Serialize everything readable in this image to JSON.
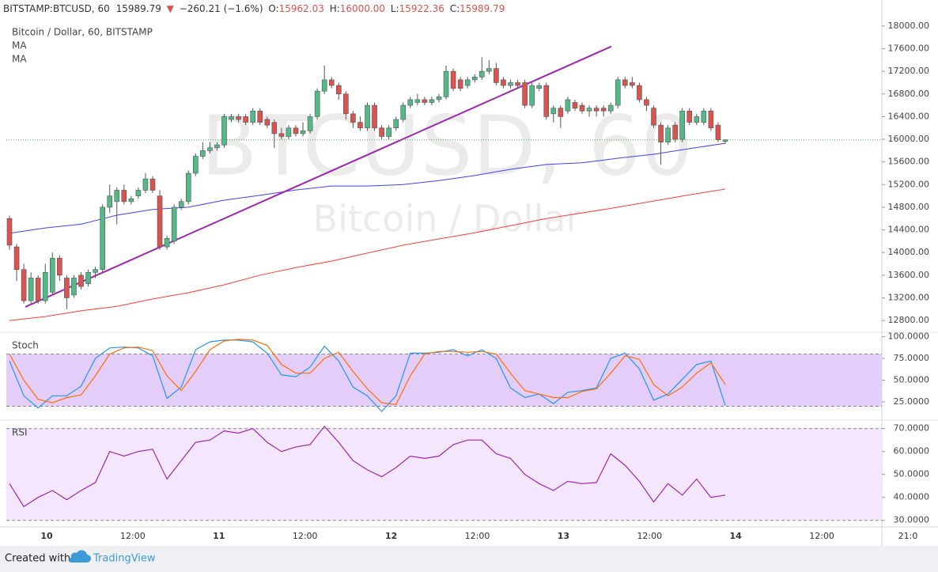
{
  "header": {
    "symbol": "BITSTAMP:BTCUSD, 60",
    "last": "15989.79",
    "arrow": "▼",
    "change": "−260.21 (−1.6%)",
    "o_label": "O:",
    "o": "15962.03",
    "h_label": "H:",
    "h": "16000.00",
    "l_label": "L:",
    "l": "15922.36",
    "c_label": "C:",
    "c": "15989.79"
  },
  "watermark": {
    "symbol": "BTCUSD, 60",
    "name": "Bitcoin / Dollar"
  },
  "time_axis": [
    "10",
    "12:00",
    "11",
    "12:00",
    "12",
    "12:00",
    "13",
    "12:00",
    "14",
    "12:00",
    "21:0"
  ],
  "footer": {
    "prefix": "Created with",
    "brand": "TradingView"
  },
  "chart_data": [
    {
      "type": "candlestick",
      "title": "Bitcoin / Dollar, 60, BITSTAMP",
      "up_color": "#53b987",
      "down_color": "#d9534f",
      "ylim": [
        12620,
        18180
      ],
      "yticks": [
        {
          "value": 12800,
          "label": "12800.00"
        },
        {
          "value": 13200,
          "label": "13200.00"
        },
        {
          "value": 13600,
          "label": "13600.00"
        },
        {
          "value": 14000,
          "label": "14000.00"
        },
        {
          "value": 14400,
          "label": "14400.00"
        },
        {
          "value": 14800,
          "label": "14800.00"
        },
        {
          "value": 15200,
          "label": "15200.00"
        },
        {
          "value": 15600,
          "label": "15600.00"
        },
        {
          "value": 16000,
          "label": "16000.00"
        },
        {
          "value": 16400,
          "label": "16400.00"
        },
        {
          "value": 16800,
          "label": "16800.00"
        },
        {
          "value": 17200,
          "label": "17200.00"
        },
        {
          "value": 17600,
          "label": "17600.00"
        },
        {
          "value": 18000,
          "label": "18000.00"
        }
      ],
      "last_price": 15989.79,
      "last_price_color": "#4caf50",
      "trendline": {
        "color": "#9c27b0",
        "values": [
          13040,
          17640
        ]
      },
      "candles": [
        [
          14600,
          14650,
          14050,
          14130
        ],
        [
          14100,
          14150,
          13500,
          13700
        ],
        [
          13700,
          13800,
          13100,
          13150
        ],
        [
          13150,
          13650,
          13100,
          13550
        ],
        [
          13550,
          13600,
          13100,
          13150
        ],
        [
          13150,
          13800,
          13100,
          13650
        ],
        [
          13300,
          14000,
          13250,
          13900
        ],
        [
          13900,
          13950,
          13500,
          13600
        ],
        [
          13550,
          13600,
          13000,
          13200
        ],
        [
          13250,
          13600,
          13200,
          13550
        ],
        [
          13600,
          13650,
          13350,
          13400
        ],
        [
          13450,
          13700,
          13400,
          13650
        ],
        [
          13650,
          13750,
          13550,
          13700
        ],
        [
          13700,
          14850,
          13650,
          14800
        ],
        [
          14800,
          15200,
          14700,
          15000
        ],
        [
          14900,
          15150,
          14500,
          15100
        ],
        [
          15100,
          15200,
          14850,
          14900
        ],
        [
          14900,
          15000,
          14850,
          14950
        ],
        [
          15000,
          15150,
          14950,
          15100
        ],
        [
          15100,
          15400,
          15050,
          15300
        ],
        [
          15300,
          15350,
          15050,
          15100
        ],
        [
          15000,
          15100,
          14050,
          14100
        ],
        [
          14100,
          14300,
          14050,
          14250
        ],
        [
          14200,
          14850,
          14150,
          14800
        ],
        [
          14800,
          14950,
          14750,
          14900
        ],
        [
          14900,
          15450,
          14850,
          15400
        ],
        [
          15400,
          15750,
          15350,
          15700
        ],
        [
          15700,
          15950,
          15650,
          15800
        ],
        [
          15800,
          15950,
          15750,
          15850
        ],
        [
          15850,
          15950,
          15800,
          15900
        ],
        [
          15900,
          16450,
          15850,
          16400
        ],
        [
          16350,
          16450,
          16300,
          16400
        ],
        [
          16400,
          16450,
          16300,
          16350
        ],
        [
          16400,
          16450,
          16250,
          16300
        ],
        [
          16300,
          16550,
          16250,
          16500
        ],
        [
          16500,
          16550,
          16250,
          16300
        ],
        [
          16350,
          16400,
          16200,
          16250
        ],
        [
          16300,
          16350,
          15850,
          16100
        ],
        [
          16100,
          16200,
          16000,
          16050
        ],
        [
          16050,
          16250,
          16000,
          16200
        ],
        [
          16200,
          16250,
          16050,
          16100
        ],
        [
          16100,
          16300,
          16050,
          16150
        ],
        [
          16150,
          16450,
          16100,
          16400
        ],
        [
          16400,
          16900,
          16350,
          16850
        ],
        [
          16850,
          17300,
          16800,
          17050
        ],
        [
          17050,
          17100,
          16900,
          16950
        ],
        [
          16950,
          17000,
          16700,
          16800
        ],
        [
          16800,
          16850,
          16350,
          16450
        ],
        [
          16450,
          16500,
          16200,
          16300
        ],
        [
          16300,
          16400,
          16150,
          16200
        ],
        [
          16200,
          16650,
          16150,
          16600
        ],
        [
          16600,
          16650,
          16150,
          16200
        ],
        [
          16200,
          16250,
          16000,
          16050
        ],
        [
          16050,
          16250,
          16000,
          16200
        ],
        [
          16200,
          16400,
          16150,
          16350
        ],
        [
          16350,
          16650,
          16300,
          16600
        ],
        [
          16600,
          16750,
          16550,
          16700
        ],
        [
          16650,
          16800,
          16600,
          16700
        ],
        [
          16700,
          16750,
          16600,
          16650
        ],
        [
          16650,
          16750,
          16600,
          16700
        ],
        [
          16700,
          16800,
          16650,
          16750
        ],
        [
          16750,
          17300,
          16700,
          17200
        ],
        [
          17200,
          17250,
          16850,
          16900
        ],
        [
          17050,
          17100,
          16850,
          16900
        ],
        [
          16950,
          17100,
          16900,
          17050
        ],
        [
          17050,
          17150,
          17000,
          17100
        ],
        [
          17100,
          17450,
          17050,
          17200
        ],
        [
          17200,
          17400,
          17150,
          17250
        ],
        [
          17250,
          17350,
          16950,
          17000
        ],
        [
          17050,
          17100,
          16900,
          16950
        ],
        [
          16950,
          17050,
          16900,
          17000
        ],
        [
          17000,
          17050,
          16900,
          16950
        ],
        [
          17000,
          17050,
          16550,
          16600
        ],
        [
          16600,
          17000,
          16550,
          16950
        ],
        [
          16900,
          17000,
          16850,
          16950
        ],
        [
          16950,
          17000,
          16350,
          16400
        ],
        [
          16450,
          16600,
          16300,
          16550
        ],
        [
          16550,
          16600,
          16200,
          16400
        ],
        [
          16500,
          16750,
          16450,
          16700
        ],
        [
          16650,
          16700,
          16500,
          16550
        ],
        [
          16600,
          16650,
          16450,
          16500
        ],
        [
          16500,
          16600,
          16400,
          16550
        ],
        [
          16550,
          16600,
          16400,
          16500
        ],
        [
          16550,
          16600,
          16400,
          16500
        ],
        [
          16500,
          16650,
          16450,
          16600
        ],
        [
          16600,
          17100,
          16550,
          17050
        ],
        [
          17050,
          17100,
          16900,
          16950
        ],
        [
          17000,
          17100,
          16900,
          16950
        ],
        [
          16950,
          17000,
          16650,
          16700
        ],
        [
          16700,
          16750,
          16500,
          16600
        ],
        [
          16550,
          16600,
          16200,
          16250
        ],
        [
          16250,
          16300,
          15550,
          15950
        ],
        [
          15950,
          16250,
          15900,
          16200
        ],
        [
          16250,
          16300,
          15950,
          16000
        ],
        [
          16000,
          16550,
          15950,
          16500
        ],
        [
          16500,
          16550,
          16250,
          16300
        ],
        [
          16300,
          16450,
          16250,
          16400
        ],
        [
          16300,
          16550,
          16250,
          16500
        ],
        [
          16500,
          16550,
          16150,
          16200
        ],
        [
          16250,
          16300,
          15950,
          15990
        ],
        [
          15962.03,
          16000,
          15922.36,
          15989.79
        ]
      ],
      "series": [
        {
          "name": "MA",
          "color": "#3f3fff",
          "values": [
            14340,
            14435,
            14500,
            14660,
            14760,
            14800,
            14925,
            15010,
            15105,
            15175,
            15175,
            15200,
            15270,
            15360,
            15470,
            15555,
            15585,
            15665,
            15735,
            15835,
            15930
          ]
        },
        {
          "name": "MA",
          "color": "#ff3b30",
          "values": [
            12800,
            12870,
            12970,
            13050,
            13180,
            13290,
            13430,
            13600,
            13735,
            13850,
            13990,
            14130,
            14240,
            14350,
            14475,
            14600,
            14700,
            14800,
            14910,
            15020,
            15120
          ]
        }
      ]
    },
    {
      "type": "stoch",
      "label": "Stoch",
      "ylim": [
        5,
        105
      ],
      "yticks": [
        {
          "value": 100,
          "label": "100.0000"
        },
        {
          "value": 75,
          "label": "75.0000"
        },
        {
          "value": 50,
          "label": "50.0000"
        },
        {
          "value": 25,
          "label": "25.0000"
        }
      ],
      "bands": [
        20,
        80
      ],
      "band_color": "#e4cdf8",
      "series": [
        {
          "color": "#2196f3",
          "values": [
            72,
            32,
            18,
            32,
            32,
            43,
            75,
            87,
            88,
            87,
            78,
            29,
            42,
            85,
            94,
            96,
            96,
            94,
            81,
            56,
            54,
            65,
            89,
            72,
            42,
            32,
            14,
            32,
            81,
            81,
            82,
            85,
            78,
            85,
            75,
            41,
            30,
            34,
            23,
            36,
            38,
            41,
            75,
            81,
            63,
            27,
            34,
            51,
            68,
            72,
            21
          ]
        },
        {
          "color": "#ff6d00",
          "values": [
            80,
            50,
            28,
            24,
            30,
            33,
            55,
            80,
            87,
            88,
            84,
            55,
            38,
            60,
            85,
            95,
            97,
            96,
            90,
            68,
            58,
            58,
            75,
            82,
            60,
            40,
            24,
            22,
            55,
            80,
            83,
            83,
            82,
            83,
            80,
            58,
            38,
            34,
            30,
            30,
            37,
            40,
            58,
            78,
            74,
            45,
            32,
            42,
            58,
            70,
            45
          ]
        }
      ]
    },
    {
      "type": "rsi",
      "label": "RSI",
      "ylim": [
        27.5,
        73
      ],
      "yticks": [
        {
          "value": 70,
          "label": "70.0000"
        },
        {
          "value": 60,
          "label": "60.0000"
        },
        {
          "value": 50,
          "label": "50.0000"
        },
        {
          "value": 40,
          "label": "40.0000"
        },
        {
          "value": 30,
          "label": "30.0000"
        }
      ],
      "bands": [
        30,
        70
      ],
      "band_color": "#f4e6fc",
      "series": [
        {
          "color": "#9c27b0",
          "values": [
            46,
            36,
            40,
            43,
            39,
            43,
            46.5,
            60,
            58,
            60,
            61,
            48,
            56,
            64,
            65,
            69,
            68,
            70,
            64,
            60,
            62,
            63,
            71,
            64,
            56,
            52,
            49,
            53,
            58,
            57,
            58,
            63,
            65,
            65,
            59,
            57,
            50,
            46,
            43,
            47,
            46,
            46.5,
            59,
            54,
            47,
            38,
            46,
            41,
            48,
            40,
            41
          ]
        }
      ]
    }
  ]
}
